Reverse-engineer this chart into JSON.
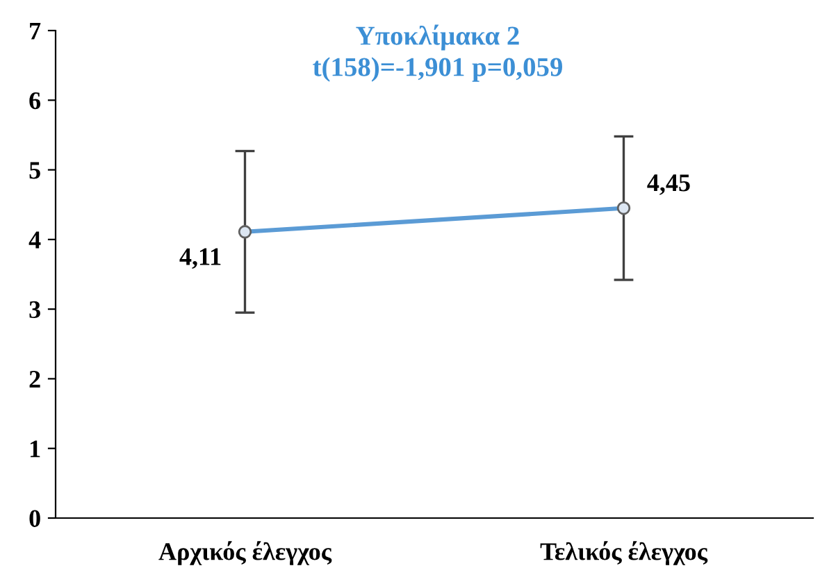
{
  "chart_data": {
    "type": "line",
    "title": "Υποκλίμακα 2",
    "subtitle": "t(158)=-1,901 p=0,059",
    "categories": [
      "Αρχικός έλεγχος",
      "Τελικός έλεγχος"
    ],
    "series": [
      {
        "color": "#5b9bd5",
        "values": [
          4.11,
          4.45
        ],
        "errors": [
          1.16,
          1.03
        ],
        "value_labels": [
          "4,11",
          "4,45"
        ]
      }
    ],
    "ylim": [
      0,
      7
    ],
    "yticks": [
      0,
      1,
      2,
      3,
      4,
      5,
      6,
      7
    ],
    "grid": false,
    "marker": "circle",
    "line_style": "solid"
  }
}
